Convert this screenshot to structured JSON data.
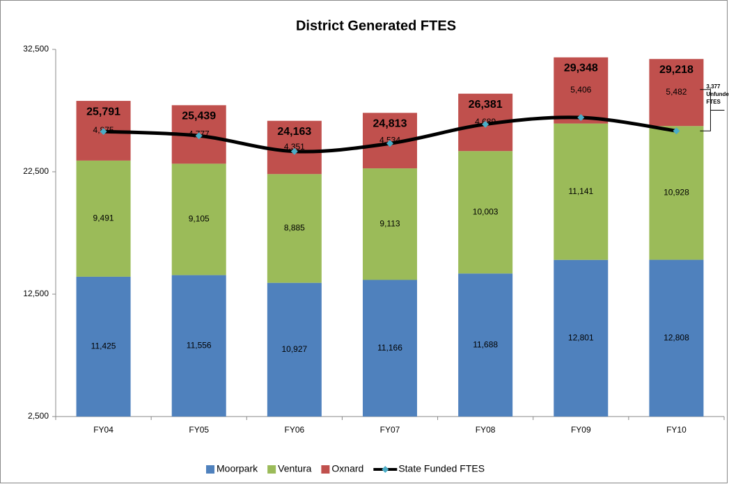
{
  "chart_data": {
    "type": "stacked-bar-line",
    "title": "District Generated FTES",
    "categories": [
      "FY04",
      "FY05",
      "FY06",
      "FY07",
      "FY08",
      "FY09",
      "FY10"
    ],
    "series": [
      {
        "name": "Moorpark",
        "color": "#4f81bd",
        "values": [
          11425,
          11556,
          10927,
          11166,
          11688,
          12801,
          12808
        ],
        "value_labels": [
          "11,425",
          "11,556",
          "10,927",
          "11,166",
          "11,688",
          "12,801",
          "12,808"
        ]
      },
      {
        "name": "Ventura",
        "color": "#9bbb59",
        "values": [
          9491,
          9105,
          8885,
          9113,
          10003,
          11141,
          10928
        ],
        "value_labels": [
          "9,491",
          "9,105",
          "8,885",
          "9,113",
          "10,003",
          "11,141",
          "10,928"
        ]
      },
      {
        "name": "Oxnard",
        "color": "#c0504d",
        "values": [
          4875,
          4777,
          4351,
          4534,
          4689,
          5406,
          5482
        ],
        "value_labels": [
          "4,875",
          "4,777",
          "4,351",
          "4,534",
          "4,689",
          "5,406",
          "5,482"
        ]
      },
      {
        "name": "State Funded FTES",
        "type": "line",
        "color": "#000000",
        "marker_color": "#4bacc6",
        "values": [
          25791,
          25439,
          24163,
          24813,
          26381,
          26930,
          25841
        ]
      }
    ],
    "totals": [
      25791,
      25439,
      24163,
      24813,
      26381,
      29348,
      29218
    ],
    "total_labels": [
      "25,791",
      "25,439",
      "24,163",
      "24,813",
      "26,381",
      "29,348",
      "29,218"
    ],
    "annotation": [
      "3,377",
      "Unfunded",
      "FTES"
    ],
    "ylim": [
      2500,
      32500
    ],
    "yticks": [
      {
        "value": 2500,
        "label": "2,500"
      },
      {
        "value": 12500,
        "label": "12,500"
      },
      {
        "value": 22500,
        "label": "22,500"
      },
      {
        "value": 32500,
        "label": "32,500"
      }
    ],
    "grid": false,
    "legend": "bottom"
  }
}
